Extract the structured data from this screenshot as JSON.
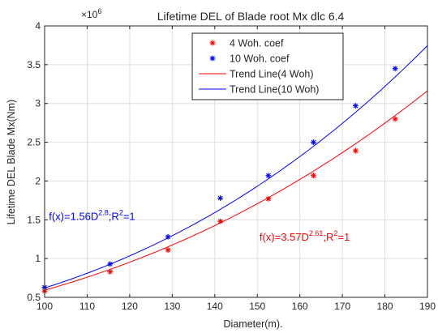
{
  "chart_data": {
    "type": "scatter",
    "title": "Lifetime DEL of Blade root Mx dlc 6.4",
    "xlabel": "Diameter(m).",
    "ylabel": "Lifetime DEL Blade Mx(Nm)",
    "y_exponent_label": "×10",
    "y_exponent_power": "6",
    "xlim": [
      100,
      190
    ],
    "ylim": [
      0.5,
      4
    ],
    "x_ticks": [
      100,
      110,
      120,
      130,
      140,
      150,
      160,
      170,
      180,
      190
    ],
    "x_tick_labels": [
      "100",
      "110",
      "120",
      "130",
      "140",
      "150",
      "160",
      "170",
      "180",
      "190"
    ],
    "y_ticks": [
      0.5,
      1,
      1.5,
      2,
      2.5,
      3,
      3.5,
      4
    ],
    "y_tick_labels": [
      "0.5",
      "1",
      "1.5",
      "2",
      "2.5",
      "3",
      "3.5",
      "4"
    ],
    "grid": true,
    "legend_position": "top-center",
    "series": [
      {
        "name": "4 Woh. coef",
        "kind": "markers",
        "marker": "*",
        "color": "#ff0000",
        "x": [
          100,
          115.4,
          129,
          141.3,
          152.6,
          163.2,
          173.1,
          182.4
        ],
        "y": [
          0.58,
          0.83,
          1.11,
          1.48,
          1.77,
          2.07,
          2.39,
          2.8
        ]
      },
      {
        "name": "10 Woh. coef",
        "kind": "markers",
        "marker": "*",
        "color": "#0000ff",
        "x": [
          100,
          115.4,
          129,
          141.3,
          152.6,
          163.2,
          173.1,
          182.4
        ],
        "y": [
          0.63,
          0.93,
          1.28,
          1.78,
          2.07,
          2.5,
          2.97,
          3.45
        ]
      },
      {
        "name": "Trend Line(4 Woh)",
        "kind": "line",
        "color": "#ff0000",
        "coef": 3.57,
        "exponent": 2.61,
        "x": [
          100,
          110,
          120,
          130,
          140,
          150,
          160,
          170,
          180,
          190
        ],
        "y": [
          0.57,
          0.73,
          0.92,
          1.12,
          1.35,
          1.62,
          1.93,
          2.27,
          2.64,
          3.08
        ]
      },
      {
        "name": "Trend Line(10 Woh)",
        "kind": "line",
        "color": "#0000ff",
        "coef": 1.56,
        "exponent": 2.8,
        "x": [
          100,
          110,
          120,
          130,
          140,
          150,
          160,
          170,
          180,
          190
        ],
        "y": [
          0.62,
          0.81,
          1.03,
          1.29,
          1.6,
          1.96,
          2.36,
          2.8,
          3.31,
          3.86
        ]
      }
    ],
    "annotations": [
      {
        "prefix": "f(x)=1.56D",
        "power": "2.8",
        "suffix": ";R",
        "r_power": "2",
        "tail": "=1",
        "color": "#0000ff",
        "x": 101,
        "y": 1.5
      },
      {
        "prefix": "f(x)=3.57D",
        "power": "2.61",
        "suffix": ";R",
        "r_power": "2",
        "tail": "=1",
        "color": "#ff0000",
        "x": 150.5,
        "y": 1.23
      }
    ]
  }
}
